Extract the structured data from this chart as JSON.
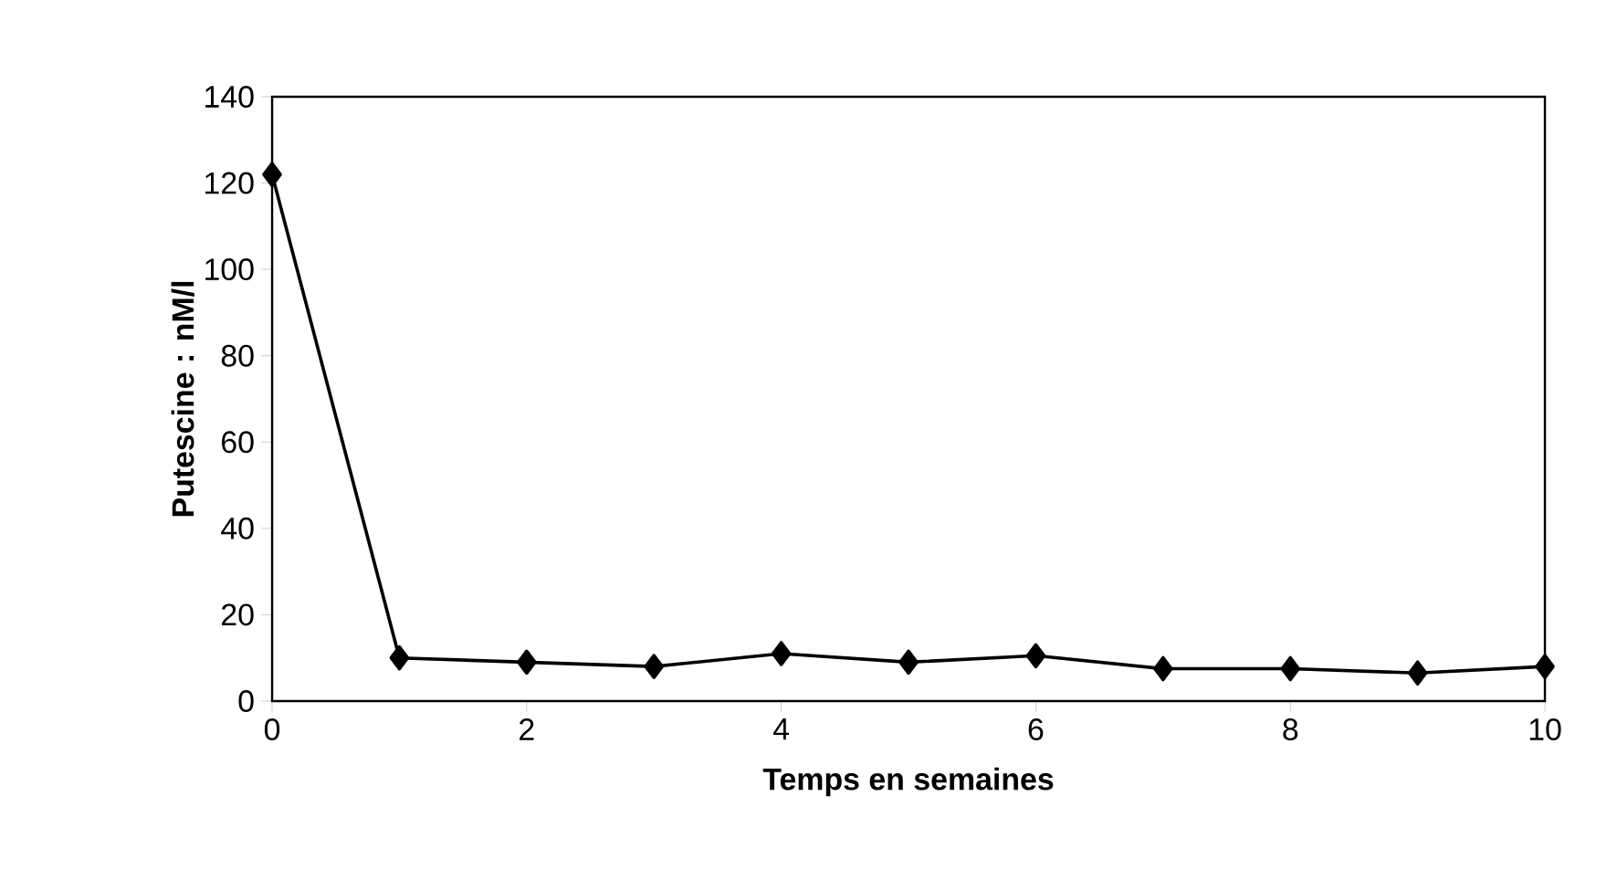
{
  "chart_data": {
    "type": "line",
    "xlabel": "Temps en semaines",
    "ylabel": "Putescine : nM/l",
    "x": [
      0,
      1,
      2,
      3,
      4,
      5,
      6,
      7,
      8,
      9,
      10
    ],
    "series": [
      {
        "color": "#000000",
        "values": [
          122,
          10,
          9,
          8,
          11,
          9,
          10.5,
          7.5,
          7.5,
          6.5,
          8
        ]
      }
    ],
    "xlim": [
      0,
      10
    ],
    "xticks": [
      0,
      2,
      4,
      6,
      8,
      10
    ],
    "ylim": [
      0,
      140
    ],
    "yticks": [
      0,
      20,
      40,
      60,
      80,
      100,
      120,
      140
    ],
    "grid": false,
    "marker": "diamond",
    "line_style": "solid"
  }
}
